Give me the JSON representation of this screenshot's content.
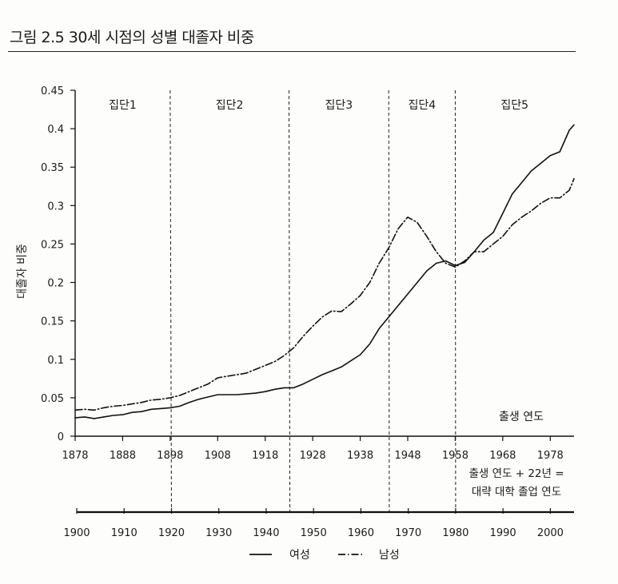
{
  "title": "그림 2.5 30세 시점의 성별 대졸자 비중",
  "chart_data": {
    "type": "line",
    "ylabel": "대졸자 비중",
    "xlabel": "출생 연도",
    "ylim": [
      0,
      0.45
    ],
    "y_ticks": [
      0,
      0.05,
      0.1,
      0.15,
      0.2,
      0.25,
      0.3,
      0.35,
      0.4,
      0.45
    ],
    "y_tick_labels": [
      "0",
      "0.05",
      "0.1",
      "0.15",
      "0.2",
      "0.25",
      "0.3",
      "0.35",
      "0.4",
      "0.45"
    ],
    "xlim": [
      1878,
      1983
    ],
    "x_ticks": [
      1878,
      1888,
      1898,
      1908,
      1918,
      1928,
      1938,
      1948,
      1958,
      1968,
      1978
    ],
    "x_tick_labels": [
      "1878",
      "1888",
      "1898",
      "1908",
      "1918",
      "1928",
      "1938",
      "1948",
      "1958",
      "1968",
      "1978"
    ],
    "secondary_axis": {
      "label": "출생 연도 + 22년 =",
      "label2": "대략 대학 졸업 연도",
      "ticks": [
        1900,
        1910,
        1920,
        1930,
        1940,
        1950,
        1960,
        1970,
        1980,
        1990,
        2000
      ],
      "tick_labels": [
        "1900",
        "1910",
        "1920",
        "1930",
        "1940",
        "1950",
        "1960",
        "1970",
        "1980",
        "1990",
        "2000"
      ]
    },
    "cohort_dividers": [
      1898,
      1923,
      1944,
      1958
    ],
    "cohorts": [
      {
        "label": "집단1",
        "center": 1888
      },
      {
        "label": "집단2",
        "center": 1910.5
      },
      {
        "label": "집단3",
        "center": 1933.5
      },
      {
        "label": "집단4",
        "center": 1951
      },
      {
        "label": "집단5",
        "center": 1970.5
      }
    ],
    "series": [
      {
        "name": "여성",
        "style": "solid",
        "x": [
          1878,
          1880,
          1882,
          1884,
          1886,
          1888,
          1890,
          1892,
          1894,
          1896,
          1898,
          1900,
          1902,
          1904,
          1906,
          1908,
          1910,
          1912,
          1914,
          1916,
          1918,
          1920,
          1922,
          1924,
          1926,
          1928,
          1930,
          1932,
          1934,
          1936,
          1938,
          1940,
          1942,
          1944,
          1946,
          1948,
          1950,
          1952,
          1954,
          1956,
          1958,
          1960,
          1962,
          1964,
          1966,
          1968,
          1970,
          1972,
          1974,
          1976,
          1978,
          1980,
          1982,
          1983
        ],
        "values": [
          0.024,
          0.025,
          0.023,
          0.025,
          0.027,
          0.028,
          0.031,
          0.032,
          0.035,
          0.036,
          0.037,
          0.039,
          0.044,
          0.048,
          0.051,
          0.054,
          0.054,
          0.054,
          0.055,
          0.056,
          0.058,
          0.061,
          0.063,
          0.063,
          0.068,
          0.074,
          0.08,
          0.085,
          0.09,
          0.098,
          0.106,
          0.12,
          0.14,
          0.155,
          0.17,
          0.185,
          0.2,
          0.215,
          0.225,
          0.228,
          0.222,
          0.226,
          0.24,
          0.255,
          0.265,
          0.29,
          0.315,
          0.33,
          0.345,
          0.355,
          0.365,
          0.37,
          0.398,
          0.405
        ]
      },
      {
        "name": "남성",
        "style": "dash-dot",
        "x": [
          1878,
          1880,
          1882,
          1884,
          1886,
          1888,
          1890,
          1892,
          1894,
          1896,
          1898,
          1900,
          1902,
          1904,
          1906,
          1908,
          1910,
          1912,
          1914,
          1916,
          1918,
          1920,
          1922,
          1924,
          1926,
          1928,
          1930,
          1932,
          1934,
          1936,
          1938,
          1940,
          1942,
          1944,
          1946,
          1948,
          1950,
          1952,
          1954,
          1956,
          1958,
          1960,
          1962,
          1964,
          1966,
          1968,
          1970,
          1972,
          1974,
          1976,
          1978,
          1980,
          1982,
          1983
        ],
        "values": [
          0.034,
          0.035,
          0.034,
          0.037,
          0.039,
          0.04,
          0.042,
          0.044,
          0.047,
          0.048,
          0.05,
          0.053,
          0.058,
          0.063,
          0.068,
          0.076,
          0.078,
          0.08,
          0.082,
          0.087,
          0.092,
          0.097,
          0.105,
          0.115,
          0.13,
          0.143,
          0.155,
          0.163,
          0.162,
          0.172,
          0.183,
          0.2,
          0.225,
          0.245,
          0.27,
          0.285,
          0.278,
          0.26,
          0.24,
          0.225,
          0.22,
          0.228,
          0.24,
          0.24,
          0.25,
          0.26,
          0.275,
          0.285,
          0.293,
          0.303,
          0.31,
          0.31,
          0.32,
          0.335
        ]
      }
    ]
  }
}
